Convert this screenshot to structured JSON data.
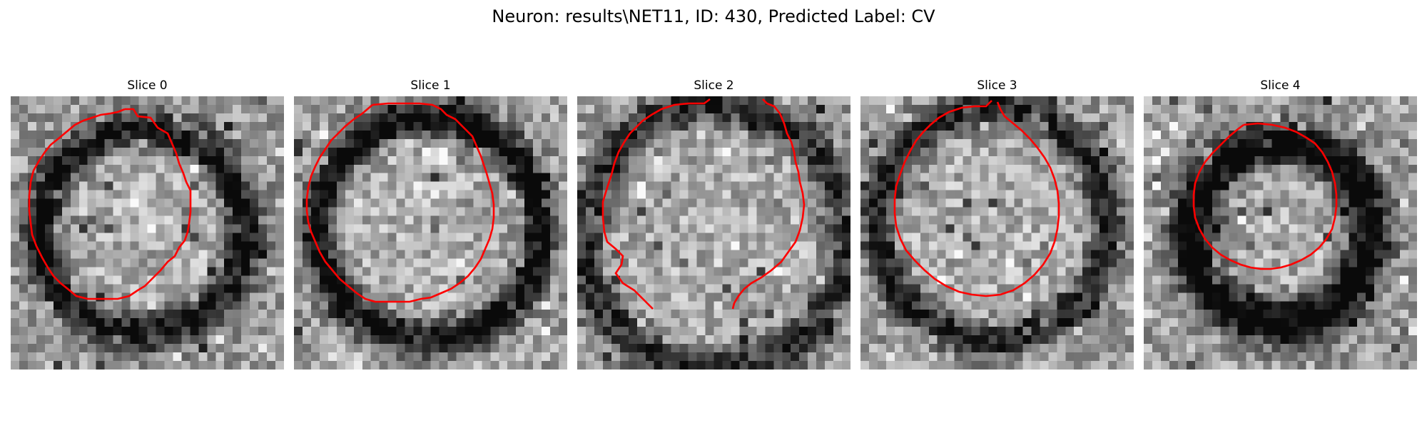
{
  "figure": {
    "title": "Neuron: results\\NET11, ID: 430, Predicted Label: CV",
    "colormap": "gray",
    "contour_color": "#ff0000"
  },
  "panels": [
    {
      "title": "Slice 0"
    },
    {
      "title": "Slice 1"
    },
    {
      "title": "Slice 2"
    },
    {
      "title": "Slice 3"
    },
    {
      "title": "Slice 4"
    }
  ]
}
